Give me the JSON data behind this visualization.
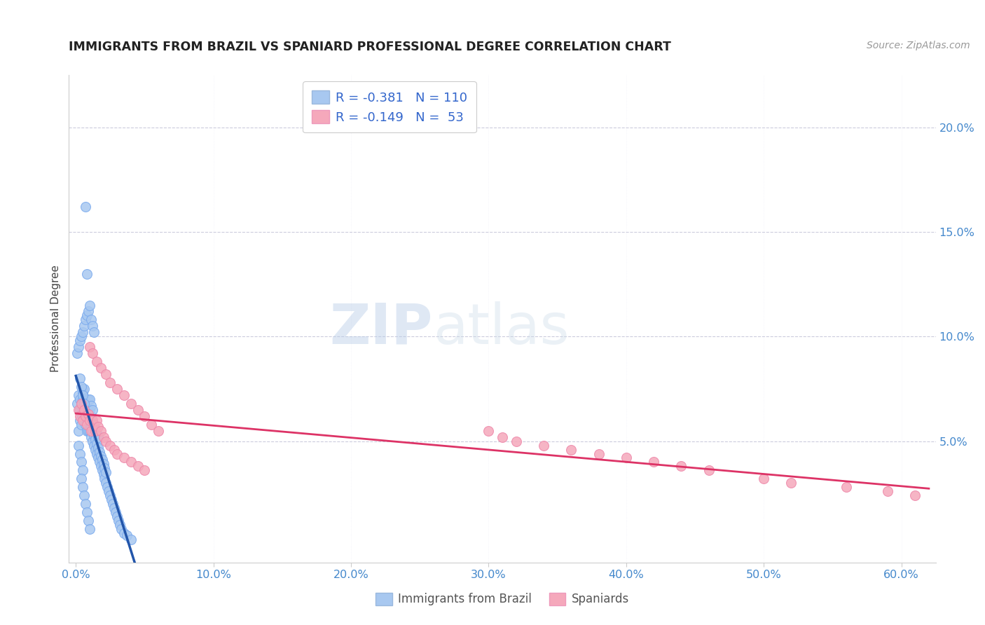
{
  "title": "IMMIGRANTS FROM BRAZIL VS SPANIARD PROFESSIONAL DEGREE CORRELATION CHART",
  "source": "Source: ZipAtlas.com",
  "ylabel": "Professional Degree",
  "x_tick_labels": [
    "0.0%",
    "10.0%",
    "20.0%",
    "30.0%",
    "40.0%",
    "50.0%",
    "60.0%"
  ],
  "x_tick_values": [
    0.0,
    0.1,
    0.2,
    0.3,
    0.4,
    0.5,
    0.6
  ],
  "y_tick_labels": [
    "5.0%",
    "10.0%",
    "15.0%",
    "20.0%"
  ],
  "y_tick_values": [
    0.05,
    0.1,
    0.15,
    0.2
  ],
  "xlim": [
    -0.005,
    0.625
  ],
  "ylim": [
    -0.008,
    0.225
  ],
  "brazil_R": -0.381,
  "brazil_N": 110,
  "spain_R": -0.149,
  "spain_N": 53,
  "brazil_color": "#a8c8f0",
  "spain_color": "#f5a8bb",
  "brazil_line_color": "#2255aa",
  "spain_line_color": "#dd3366",
  "watermark_zip": "ZIP",
  "watermark_atlas": "atlas",
  "legend_brazil": "Immigrants from Brazil",
  "legend_spain": "Spaniards",
  "brazil_scatter_x": [
    0.001,
    0.002,
    0.002,
    0.003,
    0.003,
    0.003,
    0.004,
    0.004,
    0.004,
    0.005,
    0.005,
    0.005,
    0.005,
    0.006,
    0.006,
    0.006,
    0.006,
    0.007,
    0.007,
    0.007,
    0.007,
    0.008,
    0.008,
    0.008,
    0.008,
    0.009,
    0.009,
    0.009,
    0.009,
    0.01,
    0.01,
    0.01,
    0.01,
    0.011,
    0.011,
    0.011,
    0.011,
    0.012,
    0.012,
    0.012,
    0.012,
    0.013,
    0.013,
    0.013,
    0.014,
    0.014,
    0.014,
    0.015,
    0.015,
    0.015,
    0.016,
    0.016,
    0.016,
    0.017,
    0.017,
    0.018,
    0.018,
    0.019,
    0.019,
    0.02,
    0.02,
    0.021,
    0.021,
    0.022,
    0.022,
    0.023,
    0.024,
    0.025,
    0.026,
    0.027,
    0.028,
    0.029,
    0.03,
    0.031,
    0.032,
    0.033,
    0.035,
    0.037,
    0.04,
    0.001,
    0.002,
    0.003,
    0.004,
    0.005,
    0.006,
    0.007,
    0.008,
    0.009,
    0.01,
    0.011,
    0.012,
    0.013,
    0.007,
    0.008,
    0.003,
    0.004,
    0.005,
    0.006,
    0.007,
    0.002,
    0.003,
    0.004,
    0.005,
    0.004,
    0.005,
    0.006,
    0.007,
    0.008,
    0.009,
    0.01
  ],
  "brazil_scatter_y": [
    0.068,
    0.055,
    0.072,
    0.06,
    0.065,
    0.07,
    0.058,
    0.063,
    0.068,
    0.073,
    0.065,
    0.07,
    0.075,
    0.06,
    0.065,
    0.07,
    0.075,
    0.058,
    0.062,
    0.066,
    0.07,
    0.055,
    0.06,
    0.065,
    0.07,
    0.055,
    0.06,
    0.065,
    0.07,
    0.055,
    0.06,
    0.065,
    0.07,
    0.052,
    0.057,
    0.062,
    0.067,
    0.05,
    0.055,
    0.06,
    0.065,
    0.048,
    0.053,
    0.058,
    0.046,
    0.051,
    0.056,
    0.044,
    0.049,
    0.054,
    0.042,
    0.047,
    0.052,
    0.04,
    0.045,
    0.038,
    0.043,
    0.036,
    0.041,
    0.034,
    0.039,
    0.032,
    0.037,
    0.03,
    0.035,
    0.028,
    0.026,
    0.024,
    0.022,
    0.02,
    0.018,
    0.016,
    0.014,
    0.012,
    0.01,
    0.008,
    0.006,
    0.005,
    0.003,
    0.092,
    0.095,
    0.098,
    0.1,
    0.102,
    0.105,
    0.108,
    0.11,
    0.112,
    0.115,
    0.108,
    0.105,
    0.102,
    0.162,
    0.13,
    0.08,
    0.076,
    0.072,
    0.068,
    0.064,
    0.048,
    0.044,
    0.04,
    0.036,
    0.032,
    0.028,
    0.024,
    0.02,
    0.016,
    0.012,
    0.008
  ],
  "spain_scatter_x": [
    0.002,
    0.003,
    0.004,
    0.005,
    0.006,
    0.007,
    0.008,
    0.009,
    0.01,
    0.011,
    0.012,
    0.013,
    0.014,
    0.015,
    0.016,
    0.018,
    0.02,
    0.022,
    0.025,
    0.028,
    0.03,
    0.035,
    0.04,
    0.045,
    0.05,
    0.01,
    0.012,
    0.015,
    0.018,
    0.022,
    0.025,
    0.03,
    0.035,
    0.04,
    0.045,
    0.05,
    0.055,
    0.06,
    0.3,
    0.31,
    0.32,
    0.34,
    0.36,
    0.38,
    0.4,
    0.42,
    0.44,
    0.46,
    0.5,
    0.52,
    0.56,
    0.59,
    0.61
  ],
  "spain_scatter_y": [
    0.065,
    0.062,
    0.068,
    0.06,
    0.065,
    0.062,
    0.058,
    0.063,
    0.06,
    0.055,
    0.06,
    0.058,
    0.055,
    0.06,
    0.057,
    0.055,
    0.052,
    0.05,
    0.048,
    0.046,
    0.044,
    0.042,
    0.04,
    0.038,
    0.036,
    0.095,
    0.092,
    0.088,
    0.085,
    0.082,
    0.078,
    0.075,
    0.072,
    0.068,
    0.065,
    0.062,
    0.058,
    0.055,
    0.055,
    0.052,
    0.05,
    0.048,
    0.046,
    0.044,
    0.042,
    0.04,
    0.038,
    0.036,
    0.032,
    0.03,
    0.028,
    0.026,
    0.024
  ]
}
